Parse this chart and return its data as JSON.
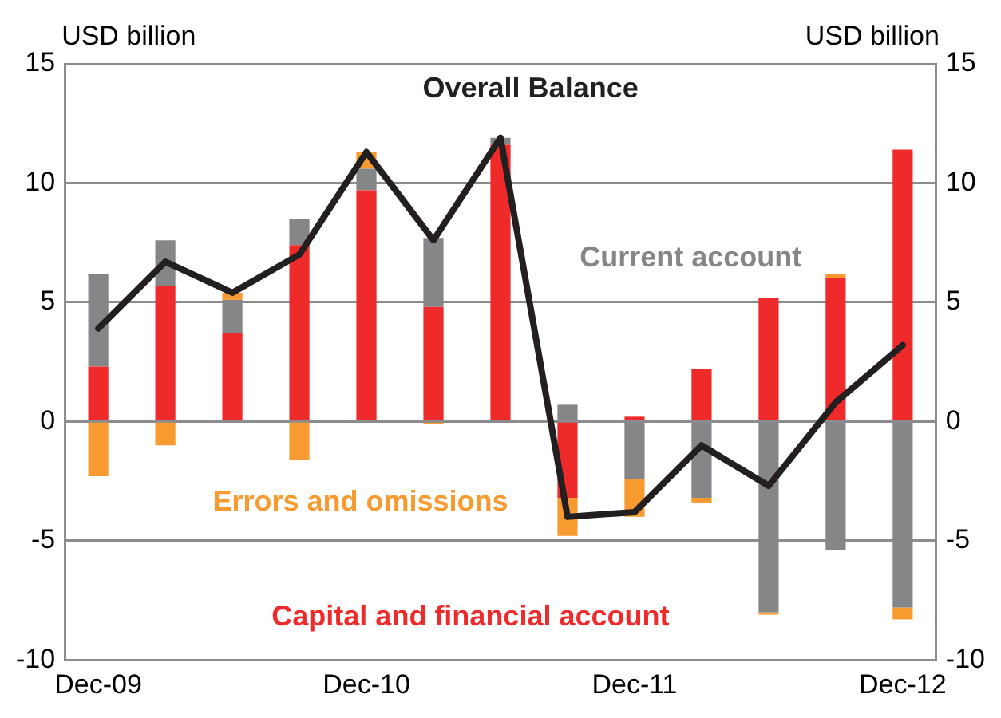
{
  "chart_data": {
    "type": "bar",
    "stacked": true,
    "ylabel": "USD billion",
    "y2label": "USD billion",
    "categories": [
      "Dec-09",
      null,
      null,
      null,
      "Dec-10",
      null,
      null,
      null,
      "Dec-11",
      null,
      null,
      null,
      "Dec-12"
    ],
    "series": [
      {
        "name": "Capital and financial account",
        "color": "#ee2a2b",
        "values": [
          2.3,
          5.7,
          3.7,
          7.4,
          9.7,
          4.8,
          11.6,
          -3.2,
          0.2,
          2.2,
          5.2,
          6.0,
          11.4
        ]
      },
      {
        "name": "Current account",
        "color": "#858688",
        "values": [
          3.9,
          1.9,
          1.4,
          1.1,
          0.9,
          2.9,
          0.3,
          0.7,
          -2.4,
          -3.2,
          -8.0,
          -5.4,
          -7.8
        ]
      },
      {
        "name": "Errors and omissions",
        "color": "#f79a2f",
        "values": [
          -2.3,
          -1.0,
          0.3,
          -1.6,
          0.7,
          -0.1,
          null,
          -1.6,
          -1.6,
          -0.2,
          -0.1,
          0.2,
          -0.5
        ]
      },
      {
        "name": "Overall Balance",
        "type": "line",
        "color": "#231f20",
        "values": [
          3.9,
          6.7,
          5.4,
          7.0,
          11.3,
          7.6,
          11.9,
          -4.0,
          -3.8,
          -1.0,
          -2.7,
          0.8,
          3.2
        ]
      }
    ],
    "ylim": [
      -10,
      15
    ],
    "yticks": [
      -10,
      -5,
      0,
      5,
      10,
      15
    ],
    "y2lim": [
      -10,
      15
    ],
    "y2ticks": [
      -10,
      -5,
      0,
      5,
      10,
      15
    ],
    "grid": "y",
    "legend": false,
    "marker": "none"
  }
}
